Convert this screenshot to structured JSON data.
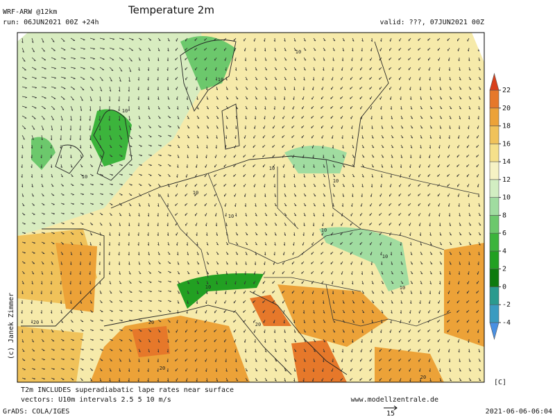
{
  "header": {
    "model": "WRF-ARW @12km",
    "title": "Temperature 2m",
    "run": "run: 06JUN2021 00Z +24h",
    "valid": "valid: ???, 07JUN2021 00Z"
  },
  "copyright": "(c) Janek Zimmer",
  "colorbar": {
    "ticks": [
      -4,
      -2,
      0,
      2,
      4,
      6,
      8,
      10,
      12,
      14,
      16,
      18,
      20,
      22
    ],
    "colors": [
      "#4a90e2",
      "#3a9bc0",
      "#2a9a8e",
      "#0e7a0e",
      "#22a022",
      "#3cb43c",
      "#6cc86c",
      "#a0dca0",
      "#d2eec2",
      "#f6f2c4",
      "#f5e08a",
      "#f0c25a",
      "#eca238",
      "#e6782a",
      "#d8401c"
    ],
    "unit": "[C]"
  },
  "map_labels": [
    "10",
    "10",
    "10",
    "10",
    "10",
    "10",
    "10",
    "10",
    "10",
    "10",
    "10",
    "10",
    "20",
    "20",
    "20",
    "20",
    "20"
  ],
  "footer": {
    "note": "T2m INCLUDES superadiabatic lape rates near surface",
    "vectors": "vectors: U10m intervals 2.5 5 10 m/s",
    "website": "www.modellzentrale.de",
    "grads": "GrADS: COLA/IGES",
    "vector_scale": "15",
    "timestamp": "2021-06-06-06:04"
  }
}
